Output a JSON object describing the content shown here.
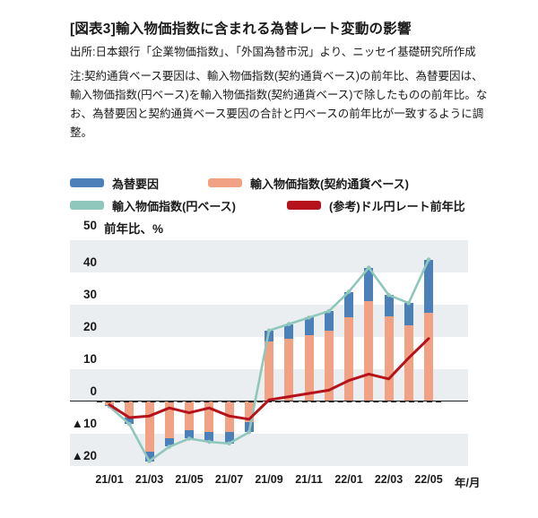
{
  "header": {
    "title": "[図表3]輸入物価指数に含まれる為替レート変動の影響",
    "source": "出所:日本銀行「企業物価指数」、「外国為替市況」より、ニッセイ基礎研究所作成",
    "note": "注:契約通貨ベース要因は、輸入物価指数(契約通貨ベース)の前年比、為替要因は、輸入物価指数(円ベース)を輸入物価指数(契約通貨ベース)で除したものの前年比。なお、為替要因と契約通貨ベース要因の合計と円ベースの前年比が一致するように調整。"
  },
  "legend": [
    {
      "label": "為替要因",
      "color": "#4B80B8",
      "type": "bar"
    },
    {
      "label": "輸入物価指数(契約通貨ベース)",
      "color": "#F1A285",
      "type": "bar"
    },
    {
      "label": "輸入物価指数(円ベース)",
      "color": "#8FC7BC",
      "type": "line"
    },
    {
      "label": "(参考)ドル円レート前年比",
      "color": "#B5121B",
      "type": "line"
    }
  ],
  "axis": {
    "y_top_tick": "50",
    "y_unit_label": "前年比、%",
    "x_unit_label": "年/月",
    "y_ticks": [
      {
        "v": 40,
        "label": "40"
      },
      {
        "v": 30,
        "label": "30"
      },
      {
        "v": 20,
        "label": "20"
      },
      {
        "v": 10,
        "label": "10"
      },
      {
        "v": 0,
        "label": "0"
      },
      {
        "v": -10,
        "label": "▲10"
      },
      {
        "v": -20,
        "label": "▲20"
      }
    ],
    "x_tick_labels": [
      "21/01",
      "21/03",
      "21/05",
      "21/07",
      "21/09",
      "21/11",
      "22/01",
      "22/03",
      "22/05"
    ]
  },
  "colors": {
    "fx_factor_bar": "#4B80B8",
    "contract_currency_bar": "#F1A285",
    "yen_base_line": "#8FC7BC",
    "usdjpy_line": "#B5121B",
    "grid_band_gray": "#EBEEF0",
    "zero_line": "#1A1A1A"
  },
  "chart_data": {
    "type": "bar",
    "subtype": "stacked bars with two overlay line series",
    "categories": [
      "21/01",
      "21/02",
      "21/03",
      "21/04",
      "21/05",
      "21/06",
      "21/07",
      "21/08",
      "21/09",
      "21/10",
      "21/11",
      "21/12",
      "22/01",
      "22/02",
      "22/03",
      "22/04",
      "22/05"
    ],
    "series": [
      {
        "name": "為替要因",
        "type": "bar",
        "stacked": true,
        "color": "#4B80B8",
        "values": [
          -0.5,
          -2,
          -3,
          -2.5,
          -2.5,
          -3,
          -3.5,
          -3,
          3.5,
          4.5,
          5.5,
          6,
          8,
          10.5,
          6.5,
          7,
          16.5
        ]
      },
      {
        "name": "輸入物価指数(契約通貨ベース)",
        "type": "bar",
        "stacked": true,
        "color": "#F1A285",
        "values": [
          -1,
          -5,
          -15.5,
          -11.5,
          -9,
          -9.5,
          -9.5,
          -6.5,
          18.5,
          19.5,
          20.5,
          22,
          26,
          31,
          26.5,
          23.5,
          27.5
        ]
      },
      {
        "name": "輸入物価指数(円ベース)",
        "type": "line",
        "color": "#8FC7BC",
        "markers": true,
        "values": [
          -1.5,
          -7,
          -18.5,
          -14,
          -11.5,
          -12.5,
          -13,
          -9.5,
          22,
          24,
          26,
          28,
          34,
          41.5,
          33,
          30.5,
          44
        ]
      },
      {
        "name": "(参考)ドル円レート前年比",
        "type": "line",
        "color": "#B5121B",
        "markers": false,
        "values": [
          -1,
          -5,
          -4.5,
          -2,
          -3.5,
          -2,
          -4.5,
          -5.5,
          0.5,
          1.5,
          2.5,
          3.5,
          6.5,
          8.5,
          7,
          13.5,
          19.5
        ]
      }
    ],
    "title": "輸入物価指数に含まれる為替レート変動の影響",
    "xlabel": "年/月",
    "ylabel": "前年比、%",
    "ylim": [
      -21,
      50
    ],
    "y_gridline_step": 10,
    "grid": "alternating horizontal gray bands",
    "legend_position": "top",
    "zero_line": "dashed black"
  }
}
